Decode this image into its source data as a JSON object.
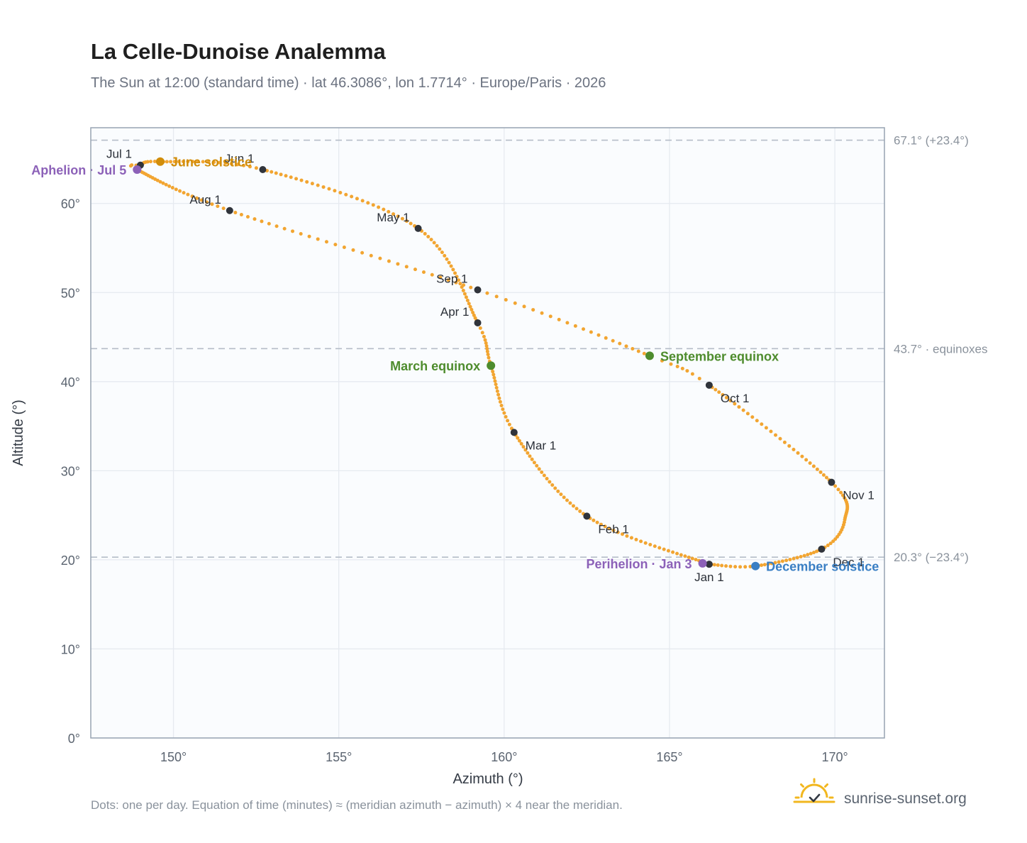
{
  "title": "La Celle-Dunoise Analemma",
  "subtitle": "The Sun at 12:00 (standard time) · lat 46.3086°, lon 1.7714° · Europe/Paris · 2026",
  "footnote": "Dots: one per day. Equation of time (minutes) ≈ (meridian azimuth − azimuth) × 4 near the meridian.",
  "brand": {
    "name": "sunrise-sunset.org",
    "icon": "sun-logo-icon"
  },
  "colors": {
    "path": "#f2a531",
    "month_dot": "#30343b",
    "june_solstice": "#d18d0a",
    "equinox": "#4e8c2d",
    "december_solstice": "#3a7fc4",
    "apsis": "#8c61b8",
    "ref_line": "#b5bdc8",
    "plot_bg": "#fafcfe",
    "frame": "#97a3b2"
  },
  "chart_data": {
    "type": "scatter",
    "xlabel": "Azimuth (°)",
    "ylabel": "Altitude (°)",
    "xlim": [
      147.5,
      171.5
    ],
    "ylim": [
      0,
      68.5
    ],
    "x_ticks": [
      150,
      155,
      160,
      165,
      170
    ],
    "y_ticks": [
      0,
      10,
      20,
      30,
      40,
      50,
      60
    ],
    "x_tick_labels": [
      "150°",
      "155°",
      "160°",
      "165°",
      "170°"
    ],
    "y_tick_labels": [
      "0°",
      "10°",
      "20°",
      "30°",
      "40°",
      "50°",
      "60°"
    ],
    "grid": true,
    "reference_lines": [
      {
        "altitude": 67.1,
        "label": "67.1° (+23.4°)"
      },
      {
        "altitude": 43.7,
        "label": "43.7° · equinoxes"
      },
      {
        "altitude": 20.3,
        "label": "20.3° (−23.4°)"
      }
    ],
    "path_anchors": [
      {
        "day": 1,
        "azimuth": 166.2,
        "altitude": 19.5
      },
      {
        "day": 32,
        "azimuth": 162.5,
        "altitude": 24.9
      },
      {
        "day": 60,
        "azimuth": 160.3,
        "altitude": 34.3
      },
      {
        "day": 79,
        "azimuth": 159.6,
        "altitude": 41.8
      },
      {
        "day": 91,
        "azimuth": 159.2,
        "altitude": 46.6
      },
      {
        "day": 121,
        "azimuth": 157.4,
        "altitude": 57.2
      },
      {
        "day": 152,
        "azimuth": 152.7,
        "altitude": 63.8
      },
      {
        "day": 172,
        "azimuth": 149.6,
        "altitude": 64.7
      },
      {
        "day": 182,
        "azimuth": 149.0,
        "altitude": 64.3
      },
      {
        "day": 186,
        "azimuth": 148.9,
        "altitude": 63.8
      },
      {
        "day": 213,
        "azimuth": 151.7,
        "altitude": 59.2
      },
      {
        "day": 244,
        "azimuth": 159.2,
        "altitude": 50.3
      },
      {
        "day": 266,
        "azimuth": 164.4,
        "altitude": 42.9
      },
      {
        "day": 274,
        "azimuth": 166.2,
        "altitude": 39.6
      },
      {
        "day": 305,
        "azimuth": 169.9,
        "altitude": 28.7
      },
      {
        "day": 322,
        "azimuth": 170.3,
        "altitude": 24.5
      },
      {
        "day": 335,
        "azimuth": 169.6,
        "altitude": 21.2
      },
      {
        "day": 355,
        "azimuth": 167.6,
        "altitude": 19.3
      },
      {
        "day": 366,
        "azimuth": 166.2,
        "altitude": 19.5
      }
    ],
    "month_markers": [
      {
        "label": "Jan 1",
        "azimuth": 166.2,
        "altitude": 19.5,
        "anchor": "below"
      },
      {
        "label": "Feb 1",
        "azimuth": 162.5,
        "altitude": 24.9,
        "anchor": "below-right"
      },
      {
        "label": "Mar 1",
        "azimuth": 160.3,
        "altitude": 34.3,
        "anchor": "below-right"
      },
      {
        "label": "Apr 1",
        "azimuth": 159.2,
        "altitude": 46.6,
        "anchor": "above-left"
      },
      {
        "label": "May 1",
        "azimuth": 157.4,
        "altitude": 57.2,
        "anchor": "above-left"
      },
      {
        "label": "Jun 1",
        "azimuth": 152.7,
        "altitude": 63.8,
        "anchor": "above-left"
      },
      {
        "label": "Jul 1",
        "azimuth": 149.0,
        "altitude": 64.3,
        "anchor": "above-left"
      },
      {
        "label": "Aug 1",
        "azimuth": 151.7,
        "altitude": 59.2,
        "anchor": "above-left"
      },
      {
        "label": "Sep 1",
        "azimuth": 159.2,
        "altitude": 50.3,
        "anchor": "below-left"
      },
      {
        "label": "Oct 1",
        "azimuth": 166.2,
        "altitude": 39.6,
        "anchor": "below-right"
      },
      {
        "label": "Nov 1",
        "azimuth": 169.9,
        "altitude": 28.7,
        "anchor": "below-right"
      },
      {
        "label": "Dec 1",
        "azimuth": 169.6,
        "altitude": 21.2,
        "anchor": "below-right"
      }
    ],
    "events": [
      {
        "label": "June solstice",
        "azimuth": 149.6,
        "altitude": 64.7,
        "color_key": "june_solstice",
        "anchor": "right"
      },
      {
        "label": "Aphelion · Jul 5",
        "azimuth": 148.9,
        "altitude": 63.8,
        "color_key": "apsis",
        "anchor": "left"
      },
      {
        "label": "March equinox",
        "azimuth": 159.6,
        "altitude": 41.8,
        "color_key": "equinox",
        "anchor": "left"
      },
      {
        "label": "September equinox",
        "azimuth": 164.4,
        "altitude": 42.9,
        "color_key": "equinox",
        "anchor": "right"
      },
      {
        "label": "December solstice",
        "azimuth": 167.6,
        "altitude": 19.3,
        "color_key": "december_solstice",
        "anchor": "right"
      },
      {
        "label": "Perihelion · Jan 3",
        "azimuth": 166.0,
        "altitude": 19.6,
        "color_key": "apsis",
        "anchor": "left"
      }
    ]
  }
}
